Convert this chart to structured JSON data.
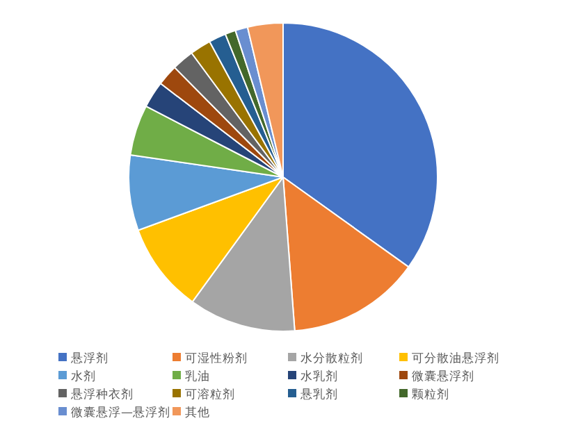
{
  "chart_data": {
    "type": "pie",
    "legend": "bottom",
    "categories": [
      "悬浮剂",
      "可湿性粉剂",
      "水分散粒剂",
      "可分散油悬浮剂",
      "水剂",
      "乳油",
      "水乳剂",
      "微囊悬浮剂",
      "悬浮种衣剂",
      "可溶粒剂",
      "悬乳剂",
      "颗粒剂",
      "微囊悬浮—悬浮剂",
      "其他"
    ],
    "values": [
      34.9,
      13.9,
      11.2,
      9.4,
      7.9,
      5.3,
      2.8,
      2.2,
      2.3,
      2.2,
      1.8,
      1.1,
      1.3,
      3.7
    ],
    "colors": [
      "#4472c4",
      "#ed7d31",
      "#a5a5a5",
      "#ffc000",
      "#5b9bd5",
      "#70ad47",
      "#264478",
      "#9e480e",
      "#636363",
      "#997300",
      "#255e91",
      "#43682b",
      "#698ed0",
      "#f1975a"
    ]
  }
}
